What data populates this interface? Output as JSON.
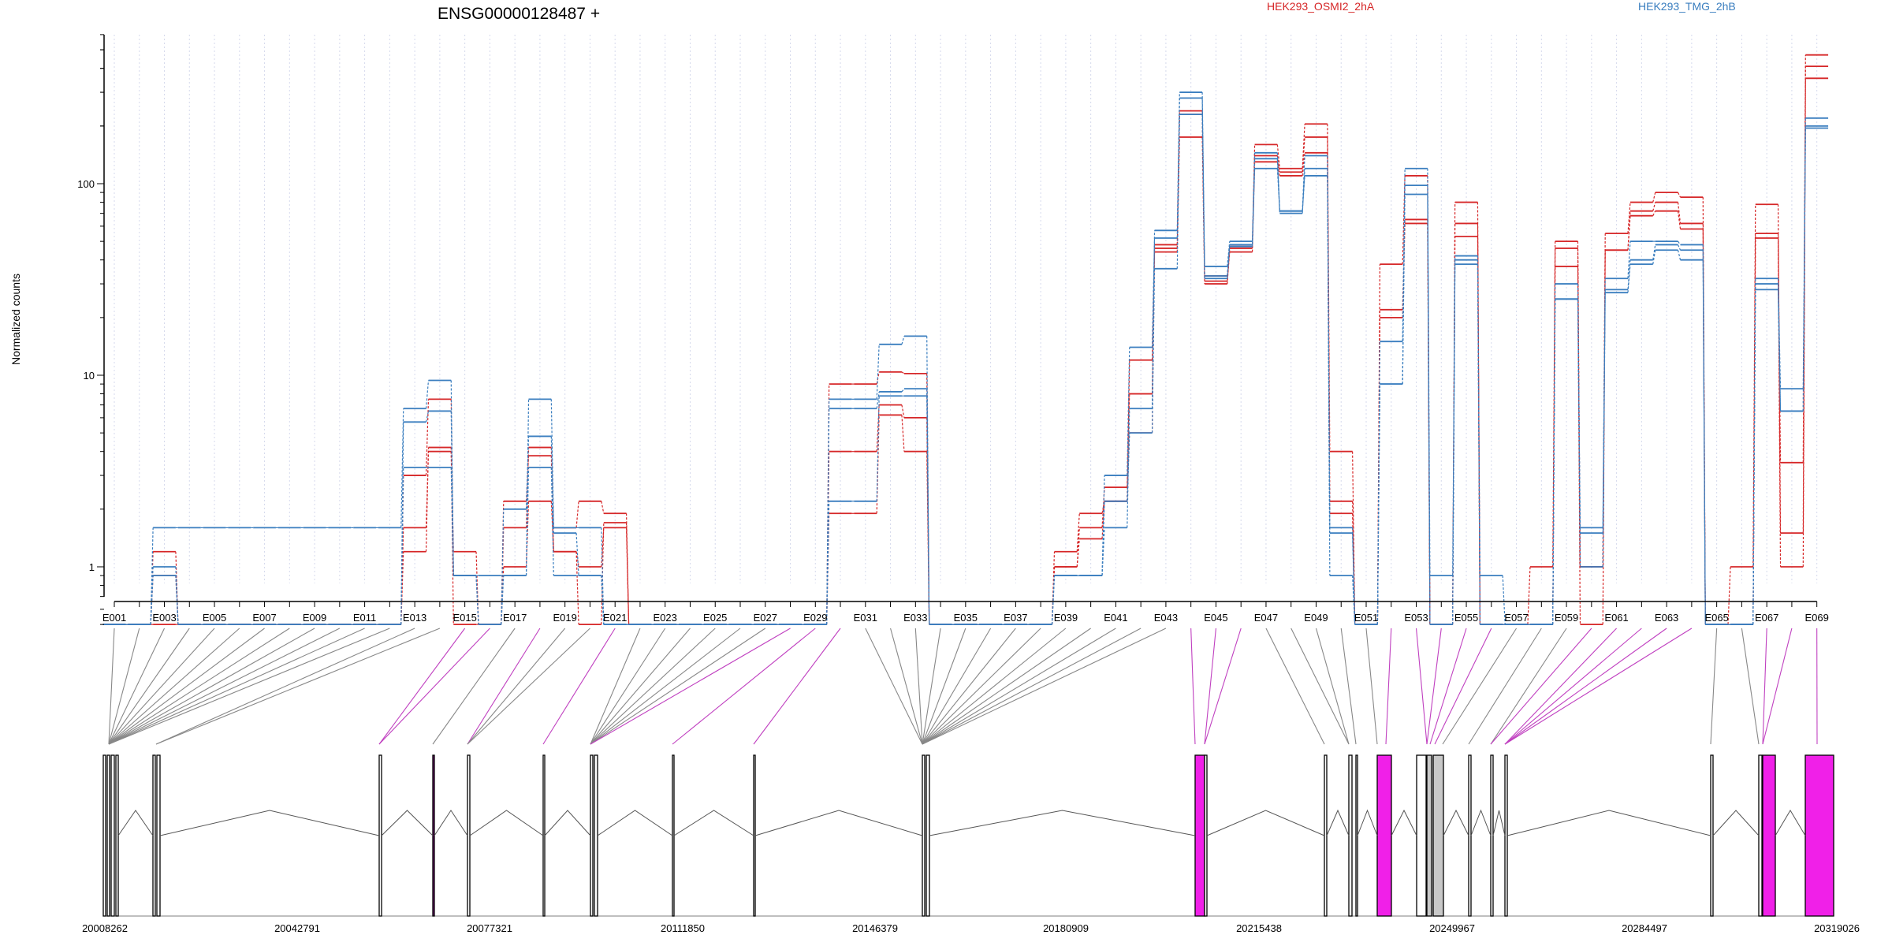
{
  "chart_data": {
    "type": "line",
    "title": "ENSG00000128487 +",
    "ylabel": "Normalized counts",
    "xlabel": "",
    "y_scale": "log",
    "y_ticks": [
      1,
      10,
      100
    ],
    "y_tick_labels": [
      "1",
      "10",
      "100"
    ],
    "ylim": [
      0.45,
      600
    ],
    "grid": "vertical dotted per exon",
    "legend_placement": "top",
    "exons": [
      "E001",
      "E002",
      "E003",
      "E004",
      "E005",
      "E006",
      "E007",
      "E008",
      "E009",
      "E010",
      "E011",
      "E012",
      "E013",
      "E014",
      "E015",
      "E016",
      "E017",
      "E018",
      "E019",
      "E020",
      "E021",
      "E022",
      "E023",
      "E024",
      "E025",
      "E026",
      "E027",
      "E028",
      "E029",
      "E030",
      "E031",
      "E032",
      "E033",
      "E034",
      "E035",
      "E036",
      "E037",
      "E038",
      "E039",
      "E040",
      "E041",
      "E042",
      "E043",
      "E044",
      "E045",
      "E046",
      "E047",
      "E048",
      "E049",
      "E050",
      "E051",
      "E052",
      "E053",
      "E054",
      "E055",
      "E056",
      "E057",
      "E058",
      "E059",
      "E060",
      "E061",
      "E062",
      "E063",
      "E064",
      "E065",
      "E066",
      "E067",
      "E068",
      "E069"
    ],
    "exon_tick_labels": [
      "E001",
      "E003",
      "E005",
      "E007",
      "E009",
      "E011",
      "E013",
      "E015",
      "E017",
      "E019",
      "E021",
      "E023",
      "E025",
      "E027",
      "E029",
      "E031",
      "E033",
      "E035",
      "E037",
      "E039",
      "E041",
      "E043",
      "E045",
      "E047",
      "E049",
      "E051",
      "E053",
      "E055",
      "E057",
      "E059",
      "E061",
      "E063",
      "E065",
      "E067",
      "E069"
    ],
    "series": [
      {
        "name": "HEK293_OSMI2_2hA",
        "color": "#d62728",
        "style": "dashed",
        "values": [
          0.5,
          0.5,
          1.2,
          0.5,
          0.5,
          0.5,
          0.5,
          0.5,
          0.5,
          0.5,
          0.5,
          0.5,
          1.6,
          4.0,
          1.2,
          0.5,
          1.6,
          4.2,
          1.6,
          2.2,
          1.9,
          0.5,
          0.5,
          0.5,
          0.5,
          0.5,
          0.5,
          0.5,
          0.5,
          9.0,
          9.0,
          10.4,
          10.2,
          0.5,
          0.5,
          0.5,
          0.5,
          0.5,
          1.2,
          1.9,
          2.2,
          5.0,
          46,
          230,
          33,
          47,
          160,
          120,
          205,
          4.0,
          0.5,
          38,
          110,
          0.5,
          80,
          0.5,
          0.5,
          1.0,
          50,
          1.0,
          55,
          80,
          90,
          85,
          0.5,
          1.0,
          78,
          1.5,
          470
        ]
      },
      {
        "name": "HEK293_OSMI2_2hA",
        "color": "#d62728",
        "style": "dashed",
        "values": [
          0.5,
          0.5,
          0.9,
          0.5,
          0.5,
          0.5,
          0.5,
          0.5,
          0.5,
          0.5,
          0.5,
          0.5,
          3.0,
          7.5,
          0.9,
          0.5,
          2.2,
          3.8,
          1.2,
          0.5,
          1.7,
          0.5,
          0.5,
          0.5,
          0.5,
          0.5,
          0.5,
          0.5,
          0.5,
          4.0,
          4.0,
          7.0,
          6.0,
          0.5,
          0.5,
          0.5,
          0.5,
          0.5,
          1.0,
          1.6,
          2.6,
          8.0,
          48,
          240,
          31,
          44,
          140,
          115,
          175,
          2.2,
          0.5,
          22,
          65,
          0.5,
          62,
          0.5,
          0.5,
          0.5,
          37,
          0.5,
          45,
          72,
          80,
          62,
          0.5,
          0.5,
          55,
          3.5,
          410
        ]
      },
      {
        "name": "HEK293_OSMI2_2hA",
        "color": "#d62728",
        "style": "dashed",
        "values": [
          0.5,
          0.5,
          0.5,
          0.5,
          0.5,
          0.5,
          0.5,
          0.5,
          0.5,
          0.5,
          0.5,
          0.5,
          1.2,
          4.2,
          0.5,
          0.5,
          1.0,
          2.2,
          1.2,
          1.0,
          1.6,
          0.5,
          0.5,
          0.5,
          0.5,
          0.5,
          0.5,
          0.5,
          0.5,
          1.9,
          1.9,
          6.2,
          4.0,
          0.5,
          0.5,
          0.5,
          0.5,
          0.5,
          1.0,
          1.4,
          2.2,
          12,
          44,
          175,
          30,
          46,
          130,
          110,
          145,
          1.9,
          0.5,
          20,
          62,
          0.5,
          53,
          0.5,
          0.5,
          0.5,
          46,
          1.0,
          45,
          68,
          72,
          58,
          0.5,
          0.5,
          52,
          1.0,
          355
        ]
      },
      {
        "name": "HEK293_TMG_2hB",
        "color": "#3a7ebf",
        "style": "dashed",
        "values": [
          0.5,
          0.5,
          1.6,
          1.6,
          1.6,
          1.6,
          1.6,
          1.6,
          1.6,
          1.6,
          1.6,
          1.6,
          6.7,
          9.4,
          0.9,
          0.9,
          0.9,
          7.5,
          1.6,
          1.6,
          0.5,
          0.5,
          0.5,
          0.5,
          0.5,
          0.5,
          0.5,
          0.5,
          0.5,
          7.5,
          7.5,
          14.5,
          16,
          0.5,
          0.5,
          0.5,
          0.5,
          0.5,
          0.9,
          0.9,
          1.6,
          6.7,
          57,
          300,
          37,
          50,
          145,
          72,
          140,
          1.6,
          0.5,
          15,
          120,
          0.9,
          42,
          0.9,
          0.5,
          0.5,
          30,
          1.6,
          32,
          50,
          50,
          48,
          0.5,
          0.5,
          32,
          8.5,
          220
        ]
      },
      {
        "name": "HEK293_TMG_2hB",
        "color": "#3a7ebf",
        "style": "dashed",
        "values": [
          0.5,
          0.5,
          1.0,
          0.5,
          0.5,
          0.5,
          0.5,
          0.5,
          0.5,
          0.5,
          0.5,
          0.5,
          5.7,
          6.5,
          0.9,
          0.5,
          2.0,
          4.8,
          1.5,
          0.9,
          0.5,
          0.5,
          0.5,
          0.5,
          0.5,
          0.5,
          0.5,
          0.5,
          0.5,
          6.7,
          6.7,
          8.2,
          8.5,
          0.5,
          0.5,
          0.5,
          0.5,
          0.5,
          0.9,
          0.9,
          3.0,
          14,
          52,
          280,
          33,
          48,
          135,
          70,
          120,
          1.5,
          0.5,
          9.0,
          98,
          0.5,
          40,
          0.5,
          0.5,
          0.5,
          25,
          1.5,
          28,
          40,
          48,
          45,
          0.5,
          0.5,
          30,
          6.5,
          200
        ]
      },
      {
        "name": "HEK293_TMG_2hB",
        "color": "#3a7ebf",
        "style": "dashed",
        "values": [
          0.5,
          0.5,
          0.9,
          0.5,
          0.5,
          0.5,
          0.5,
          0.5,
          0.5,
          0.5,
          0.5,
          0.5,
          3.3,
          3.3,
          0.9,
          0.5,
          0.9,
          3.3,
          0.9,
          0.9,
          0.5,
          0.5,
          0.5,
          0.5,
          0.5,
          0.5,
          0.5,
          0.5,
          0.5,
          2.2,
          2.2,
          7.8,
          7.8,
          0.5,
          0.5,
          0.5,
          0.5,
          0.5,
          0.9,
          0.9,
          2.2,
          5.0,
          36,
          230,
          32,
          47,
          120,
          72,
          110,
          0.9,
          0.5,
          9.0,
          88,
          0.5,
          38,
          0.5,
          0.5,
          0.5,
          25,
          1.0,
          27,
          38,
          45,
          40,
          0.5,
          0.5,
          28,
          6.5,
          195
        ]
      }
    ],
    "gene_model": {
      "coordinate_labels": [
        "20008262",
        "20042791",
        "20077321",
        "20111850",
        "20146379",
        "20180909",
        "20215438",
        "20249967",
        "20284497",
        "20319026"
      ],
      "exon_colors": {
        "constitutive": "#ffffff",
        "highlighted": "#f020e8",
        "grey": "#c8c8c8"
      }
    }
  }
}
